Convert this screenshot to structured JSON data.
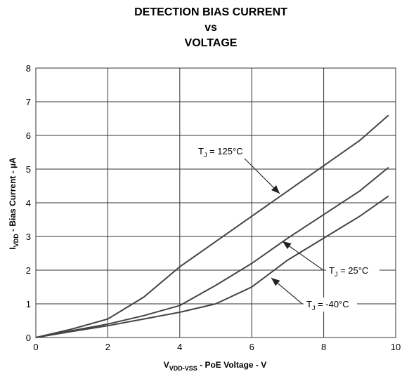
{
  "chart_data": {
    "type": "line",
    "title": [
      "DETECTION BIAS CURRENT",
      "vs",
      "VOLTAGE"
    ],
    "x_label": {
      "main": "V",
      "sub": "VDD-VSS",
      "rest": " - PoE Voltage - V"
    },
    "y_label": {
      "main": "I",
      "sub": "VDD",
      "rest": "  - Bias Current - µA"
    },
    "xlim": [
      0,
      10
    ],
    "xticks": [
      0,
      2,
      4,
      6,
      8,
      10
    ],
    "ylim": [
      0,
      8
    ],
    "yticks": [
      0,
      1,
      2,
      3,
      4,
      5,
      6,
      7,
      8
    ],
    "grid": true,
    "x": [
      0,
      1,
      2,
      3,
      4,
      5,
      6,
      7,
      8,
      9,
      9.8
    ],
    "series": [
      {
        "label": {
          "main": "T",
          "sub": "J",
          "rest": " = 125°C"
        },
        "color": "#444444",
        "values": [
          0,
          0.25,
          0.55,
          1.2,
          2.1,
          2.85,
          3.6,
          4.35,
          5.1,
          5.85,
          6.6
        ]
      },
      {
        "label": {
          "main": "T",
          "sub": "J",
          "rest": " = 25°C"
        },
        "color": "#444444",
        "values": [
          0,
          0.2,
          0.4,
          0.65,
          0.95,
          1.55,
          2.2,
          2.95,
          3.65,
          4.35,
          5.05
        ]
      },
      {
        "label": {
          "main": "T",
          "sub": "J",
          "rest": " = -40°C"
        },
        "color": "#444444",
        "values": [
          0,
          0.18,
          0.35,
          0.55,
          0.75,
          1.0,
          1.5,
          2.3,
          2.95,
          3.6,
          4.2
        ]
      }
    ]
  }
}
